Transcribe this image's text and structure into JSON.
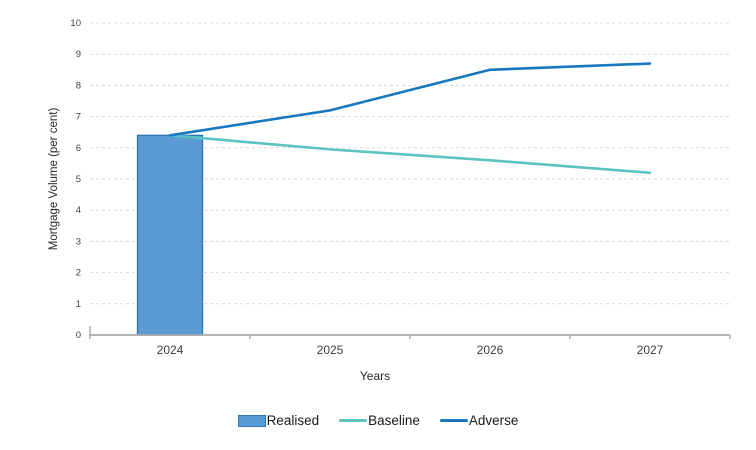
{
  "chart_data": {
    "type": "bar+line combo",
    "categories": [
      "2024",
      "2025",
      "2026",
      "2027"
    ],
    "series": [
      {
        "name": "Realised",
        "type": "bar",
        "values": [
          6.4,
          null,
          null,
          null
        ],
        "color": "#5b9bd5",
        "border_color": "#2e75b6"
      },
      {
        "name": "Baseline",
        "type": "line",
        "values": [
          6.4,
          5.95,
          5.6,
          5.2
        ],
        "color": "#5cc3c1"
      },
      {
        "name": "Adverse",
        "type": "line",
        "values": [
          6.4,
          7.2,
          8.5,
          8.7
        ],
        "color": "#1878be"
      }
    ],
    "title": "",
    "xlabel": "Years",
    "ylabel": "Mortgage Volume (per cent)",
    "ylim": [
      0,
      10
    ],
    "ytick_step": 1,
    "yticks": [
      "0",
      "1",
      "2",
      "3",
      "4",
      "5",
      "6",
      "7",
      "8",
      "9",
      "10"
    ],
    "grid": "horizontal dashed",
    "legend_position": "bottom",
    "colors": {
      "gridline": "#d9d9d9",
      "axis_line": "#a9a9a9",
      "tick_text": "#404040"
    }
  }
}
